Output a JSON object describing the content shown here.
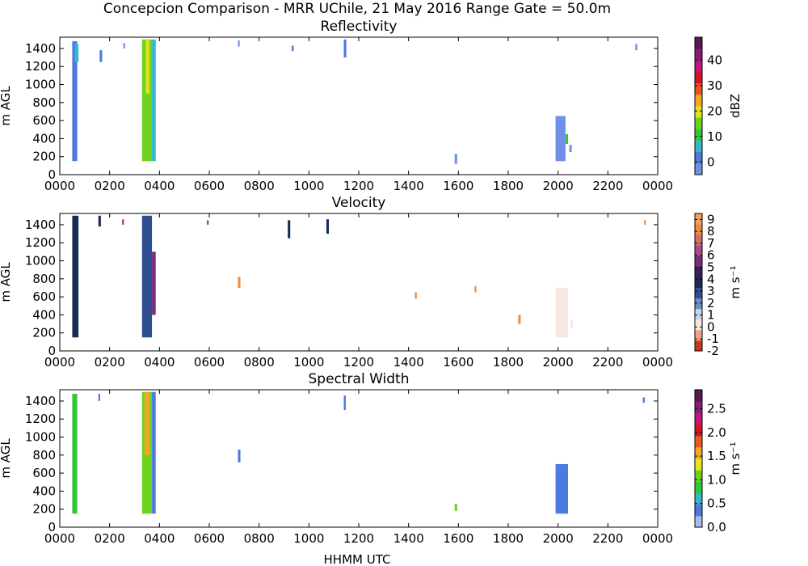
{
  "figure": {
    "suptitle": "Concepcion Comparison - MRR UChile, 21 May 2016 Range Gate = 50.0m",
    "xlabel": "HHMM UTC"
  },
  "chart_data": [
    {
      "type": "heatmap",
      "title": "Reflectivity",
      "ylabel": "m AGL",
      "xlim": [
        0,
        2400
      ],
      "ylim": [
        0,
        1525
      ],
      "xticks": [
        "0000",
        "0200",
        "0400",
        "0600",
        "0800",
        "1000",
        "1200",
        "1400",
        "1600",
        "1800",
        "2000",
        "2200",
        "0000"
      ],
      "yticks": [
        "0",
        "200",
        "400",
        "600",
        "800",
        "1000",
        "1200",
        "1400"
      ],
      "colorbar": {
        "label": "dBZ",
        "range": [
          -5,
          49
        ],
        "ticks": [
          "0",
          "10",
          "20",
          "30",
          "40"
        ],
        "stops": [
          "#6f8fe8",
          "#4b7be0",
          "#33b8d0",
          "#32c63c",
          "#6fd21c",
          "#e2e21a",
          "#f5a623",
          "#e8531d",
          "#d2132a",
          "#c61478",
          "#8c1a78",
          "#551a52"
        ]
      },
      "regions": [
        {
          "t0": 50,
          "t1": 70,
          "h0": 150,
          "h1": 1480,
          "value": 2
        },
        {
          "t0": 60,
          "t1": 75,
          "h0": 1250,
          "h1": 1450,
          "value": 8
        },
        {
          "t0": 330,
          "t1": 370,
          "h0": 150,
          "h1": 1500,
          "value": 13
        },
        {
          "t0": 345,
          "t1": 360,
          "h0": 900,
          "h1": 1500,
          "value": 18
        },
        {
          "t0": 370,
          "t1": 385,
          "h0": 150,
          "h1": 1500,
          "value": 4
        },
        {
          "t0": 160,
          "t1": 170,
          "h0": 1250,
          "h1": 1380,
          "value": 0
        },
        {
          "t0": 255,
          "t1": 262,
          "h0": 1400,
          "h1": 1460,
          "value": -2
        },
        {
          "t0": 715,
          "t1": 722,
          "h0": 1420,
          "h1": 1490,
          "value": -2
        },
        {
          "t0": 930,
          "t1": 940,
          "h0": 1370,
          "h1": 1430,
          "value": -1
        },
        {
          "t0": 1140,
          "t1": 1150,
          "h0": 1300,
          "h1": 1500,
          "value": 1
        },
        {
          "t0": 1585,
          "t1": 1595,
          "h0": 120,
          "h1": 230,
          "value": -1
        },
        {
          "t0": 1990,
          "t1": 2030,
          "h0": 150,
          "h1": 650,
          "value": -3
        },
        {
          "t0": 2030,
          "t1": 2040,
          "h0": 340,
          "h1": 450,
          "value": 12
        },
        {
          "t0": 2045,
          "t1": 2055,
          "h0": 250,
          "h1": 330,
          "value": -2
        },
        {
          "t0": 2310,
          "t1": 2318,
          "h0": 1380,
          "h1": 1450,
          "value": -2
        }
      ]
    },
    {
      "type": "heatmap",
      "title": "Velocity",
      "ylabel": "m AGL",
      "xlim": [
        0,
        2400
      ],
      "ylim": [
        0,
        1525
      ],
      "xticks": [
        "0000",
        "0200",
        "0400",
        "0600",
        "0800",
        "1000",
        "1200",
        "1400",
        "1600",
        "1800",
        "2000",
        "2200",
        "0000"
      ],
      "yticks": [
        "0",
        "200",
        "400",
        "600",
        "800",
        "1000",
        "1200",
        "1400"
      ],
      "colorbar": {
        "label": "m s⁻¹",
        "range": [
          -2,
          9.5
        ],
        "ticks": [
          "-2",
          "-1",
          "0",
          "1",
          "2",
          "3",
          "4",
          "5",
          "6",
          "7",
          "8",
          "9"
        ],
        "stops": [
          "#c93a1a",
          "#f2a28a",
          "#f7e7e2",
          "#c7d3e8",
          "#6a8ec7",
          "#2e4f90",
          "#1a2a55",
          "#3a1e5c",
          "#7a2c7e",
          "#a8488f",
          "#d07068",
          "#f08a3c",
          "#f3a05a"
        ]
      },
      "regions": [
        {
          "t0": 50,
          "t1": 75,
          "h0": 150,
          "h1": 1500,
          "value": 3.5
        },
        {
          "t0": 330,
          "t1": 370,
          "h0": 150,
          "h1": 1500,
          "value": 3.2
        },
        {
          "t0": 370,
          "t1": 385,
          "h0": 400,
          "h1": 1100,
          "value": 5.5
        },
        {
          "t0": 155,
          "t1": 165,
          "h0": 1380,
          "h1": 1500,
          "value": 3.5
        },
        {
          "t0": 250,
          "t1": 258,
          "h0": 1400,
          "h1": 1460,
          "value": 6
        },
        {
          "t0": 590,
          "t1": 598,
          "h0": 1400,
          "h1": 1450,
          "value": 6
        },
        {
          "t0": 715,
          "t1": 725,
          "h0": 700,
          "h1": 820,
          "value": 8.5
        },
        {
          "t0": 915,
          "t1": 925,
          "h0": 1250,
          "h1": 1450,
          "value": 3.8
        },
        {
          "t0": 1070,
          "t1": 1080,
          "h0": 1300,
          "h1": 1460,
          "value": 3.5
        },
        {
          "t0": 1425,
          "t1": 1433,
          "h0": 580,
          "h1": 650,
          "value": 8
        },
        {
          "t0": 1665,
          "t1": 1672,
          "h0": 650,
          "h1": 720,
          "value": 8
        },
        {
          "t0": 1840,
          "t1": 1850,
          "h0": 300,
          "h1": 400,
          "value": 8.5
        },
        {
          "t0": 1990,
          "t1": 2040,
          "h0": 150,
          "h1": 700,
          "value": 0.3
        },
        {
          "t0": 2050,
          "t1": 2060,
          "h0": 250,
          "h1": 350,
          "value": 0.5
        },
        {
          "t0": 2345,
          "t1": 2352,
          "h0": 1400,
          "h1": 1450,
          "value": 8.5
        }
      ]
    },
    {
      "type": "heatmap",
      "title": "Spectral Width",
      "ylabel": "m AGL",
      "xlim": [
        0,
        2400
      ],
      "ylim": [
        0,
        1525
      ],
      "xticks": [
        "0000",
        "0200",
        "0400",
        "0600",
        "0800",
        "1000",
        "1200",
        "1400",
        "1600",
        "1800",
        "2000",
        "2200",
        "0000"
      ],
      "yticks": [
        "0",
        "200",
        "400",
        "600",
        "800",
        "1000",
        "1200",
        "1400"
      ],
      "colorbar": {
        "label": "m s⁻¹",
        "range": [
          0,
          2.9
        ],
        "ticks": [
          "0.0",
          "0.5",
          "1.0",
          "1.5",
          "2.0",
          "2.5"
        ],
        "stops": [
          "#a8b8f0",
          "#4b7be0",
          "#33b8c8",
          "#32c63c",
          "#6fd21c",
          "#e8e41a",
          "#f5a623",
          "#e85d1d",
          "#d2132a",
          "#c61478",
          "#8c1a78",
          "#551a52"
        ]
      },
      "regions": [
        {
          "t0": 50,
          "t1": 70,
          "h0": 150,
          "h1": 1480,
          "value": 0.9
        },
        {
          "t0": 330,
          "t1": 370,
          "h0": 150,
          "h1": 1500,
          "value": 1.0
        },
        {
          "t0": 340,
          "t1": 360,
          "h0": 800,
          "h1": 1500,
          "value": 1.6
        },
        {
          "t0": 370,
          "t1": 385,
          "h0": 150,
          "h1": 1500,
          "value": 0.4
        },
        {
          "t0": 155,
          "t1": 162,
          "h0": 1400,
          "h1": 1480,
          "value": 0.35
        },
        {
          "t0": 715,
          "t1": 725,
          "h0": 720,
          "h1": 860,
          "value": 0.4
        },
        {
          "t0": 1140,
          "t1": 1148,
          "h0": 1300,
          "h1": 1460,
          "value": 0.4
        },
        {
          "t0": 1585,
          "t1": 1595,
          "h0": 180,
          "h1": 260,
          "value": 1.0
        },
        {
          "t0": 1990,
          "t1": 2040,
          "h0": 150,
          "h1": 700,
          "value": 0.4
        },
        {
          "t0": 2340,
          "t1": 2348,
          "h0": 1380,
          "h1": 1440,
          "value": 0.35
        }
      ]
    }
  ]
}
